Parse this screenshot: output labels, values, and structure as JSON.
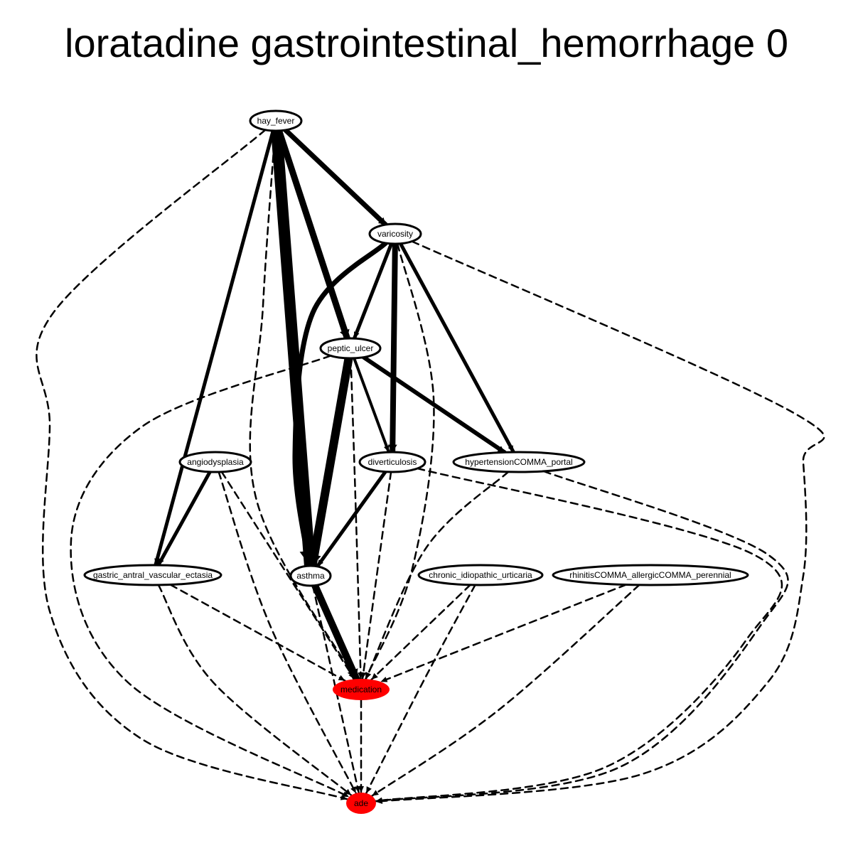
{
  "title": "loratadine gastrointestinal_hemorrhage 0",
  "colors": {
    "node_fill": "#ffffff",
    "highlight_fill": "#ff0000",
    "stroke": "#000000"
  },
  "nodes": [
    {
      "id": "hay_fever",
      "label": "hay_fever",
      "highlight": false
    },
    {
      "id": "varicosity",
      "label": "varicosity",
      "highlight": false
    },
    {
      "id": "peptic_ulcer",
      "label": "peptic_ulcer",
      "highlight": false
    },
    {
      "id": "angiodysplasia",
      "label": "angiodysplasia",
      "highlight": false
    },
    {
      "id": "diverticulosis",
      "label": "diverticulosis",
      "highlight": false
    },
    {
      "id": "hypertension_portal",
      "label": "hypertensionCOMMA_portal",
      "highlight": false
    },
    {
      "id": "gave",
      "label": "gastric_antral_vascular_ectasia",
      "highlight": false
    },
    {
      "id": "asthma",
      "label": "asthma",
      "highlight": false
    },
    {
      "id": "ciu",
      "label": "chronic_idiopathic_urticaria",
      "highlight": false
    },
    {
      "id": "rhinitis",
      "label": "rhinitisCOMMA_allergicCOMMA_perennial",
      "highlight": false
    },
    {
      "id": "medication",
      "label": "medication",
      "highlight": true
    },
    {
      "id": "ade",
      "label": "ade",
      "highlight": true
    }
  ],
  "edges": [
    {
      "from": "hay_fever",
      "to": "varicosity",
      "style": "solid",
      "weight": 7
    },
    {
      "from": "hay_fever",
      "to": "peptic_ulcer",
      "style": "solid",
      "weight": 9
    },
    {
      "from": "hay_fever",
      "to": "asthma",
      "style": "solid",
      "weight": 16
    },
    {
      "from": "hay_fever",
      "to": "gave",
      "style": "solid",
      "weight": 5
    },
    {
      "from": "hay_fever",
      "to": "medication",
      "style": "dashed",
      "weight": 2.5
    },
    {
      "from": "hay_fever",
      "to": "ade",
      "style": "dashed",
      "weight": 2.5
    },
    {
      "from": "varicosity",
      "to": "peptic_ulcer",
      "style": "solid",
      "weight": 5
    },
    {
      "from": "varicosity",
      "to": "diverticulosis",
      "style": "solid",
      "weight": 8
    },
    {
      "from": "varicosity",
      "to": "hypertension_portal",
      "style": "solid",
      "weight": 5
    },
    {
      "from": "varicosity",
      "to": "asthma",
      "style": "solid",
      "weight": 7
    },
    {
      "from": "varicosity",
      "to": "medication",
      "style": "dashed",
      "weight": 2.5
    },
    {
      "from": "varicosity",
      "to": "ade",
      "style": "dashed",
      "weight": 2.5
    },
    {
      "from": "peptic_ulcer",
      "to": "asthma",
      "style": "solid",
      "weight": 12
    },
    {
      "from": "peptic_ulcer",
      "to": "diverticulosis",
      "style": "solid",
      "weight": 4
    },
    {
      "from": "peptic_ulcer",
      "to": "hypertension_portal",
      "style": "solid",
      "weight": 6
    },
    {
      "from": "peptic_ulcer",
      "to": "medication",
      "style": "dashed",
      "weight": 2.5
    },
    {
      "from": "peptic_ulcer",
      "to": "ade",
      "style": "dashed",
      "weight": 2.5
    },
    {
      "from": "angiodysplasia",
      "to": "gave",
      "style": "solid",
      "weight": 5
    },
    {
      "from": "angiodysplasia",
      "to": "medication",
      "style": "dashed",
      "weight": 2.5
    },
    {
      "from": "angiodysplasia",
      "to": "ade",
      "style": "dashed",
      "weight": 2.5
    },
    {
      "from": "diverticulosis",
      "to": "asthma",
      "style": "solid",
      "weight": 5
    },
    {
      "from": "diverticulosis",
      "to": "medication",
      "style": "dashed",
      "weight": 2.5
    },
    {
      "from": "diverticulosis",
      "to": "ade",
      "style": "dashed",
      "weight": 2.5
    },
    {
      "from": "hypertension_portal",
      "to": "medication",
      "style": "dashed",
      "weight": 2.5
    },
    {
      "from": "hypertension_portal",
      "to": "ade",
      "style": "dashed",
      "weight": 2.5
    },
    {
      "from": "gave",
      "to": "medication",
      "style": "dashed",
      "weight": 2.5
    },
    {
      "from": "gave",
      "to": "ade",
      "style": "dashed",
      "weight": 2.5
    },
    {
      "from": "asthma",
      "to": "medication",
      "style": "solid",
      "weight": 10
    },
    {
      "from": "asthma",
      "to": "ade",
      "style": "dashed",
      "weight": 2.5
    },
    {
      "from": "ciu",
      "to": "medication",
      "style": "dashed",
      "weight": 2.5
    },
    {
      "from": "ciu",
      "to": "ade",
      "style": "dashed",
      "weight": 2.5
    },
    {
      "from": "rhinitis",
      "to": "medication",
      "style": "dashed",
      "weight": 2.5
    },
    {
      "from": "rhinitis",
      "to": "ade",
      "style": "dashed",
      "weight": 2.5
    },
    {
      "from": "medication",
      "to": "ade",
      "style": "dashed",
      "weight": 2.5
    }
  ]
}
